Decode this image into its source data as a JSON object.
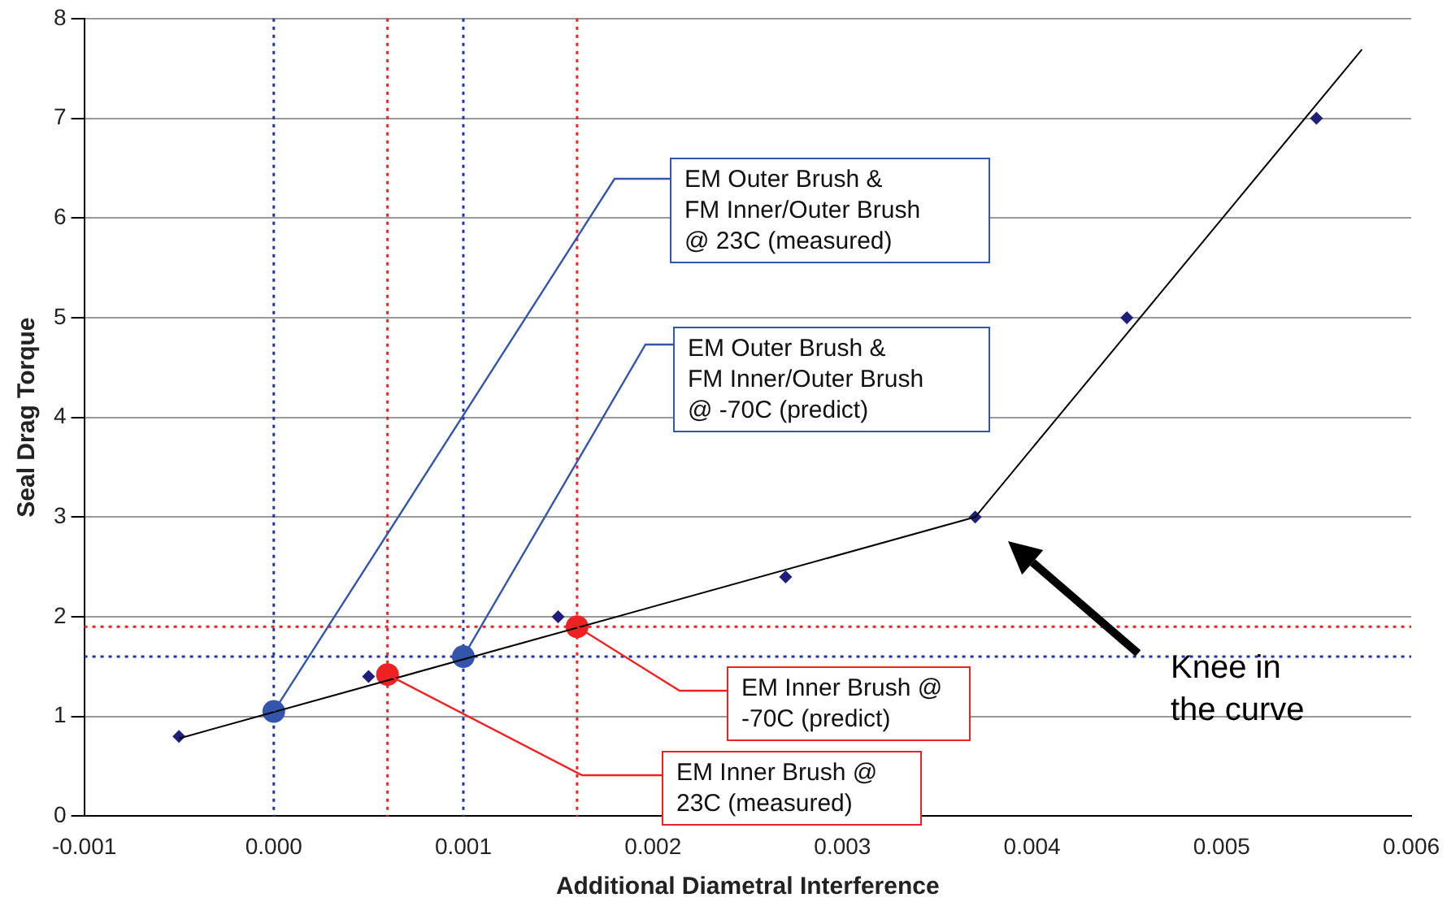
{
  "chart_data": {
    "type": "scatter",
    "xlabel": "Additional Diametral Interference",
    "ylabel": "Seal Drag Torque",
    "xlim": [
      -0.001,
      0.006
    ],
    "xticks": [
      -0.001,
      {
        "value": 0,
        "label": "0.000"
      },
      0.001,
      0.002,
      0.003,
      0.004,
      0.005,
      0.006
    ],
    "ylim": [
      0,
      8
    ],
    "yticks": [
      0,
      1,
      2,
      3,
      4,
      5,
      6,
      7,
      8
    ],
    "grid": "y",
    "legend": false,
    "series": [
      {
        "type": "line",
        "color": "#000000",
        "marker": "none",
        "x": [
          -0.0005,
          0.0037,
          0.00574
        ],
        "values": [
          0.78,
          3.0,
          7.69
        ]
      },
      {
        "type": "scatter",
        "color": "#1f1f7a",
        "marker": "diamond",
        "x": [
          -0.0005,
          0.0005,
          0.0015,
          0.0027,
          0.0037,
          0.0045,
          0.0055
        ],
        "values": [
          0.8,
          1.4,
          2.0,
          2.4,
          3.0,
          5.0,
          7.0
        ]
      },
      {
        "type": "scatter",
        "color": "#3355aa",
        "marker": "circle",
        "x": [
          0,
          0.001
        ],
        "values": [
          1.05,
          1.6
        ]
      },
      {
        "type": "scatter",
        "color": "#ee2222",
        "marker": "circle",
        "x": [
          0.0006,
          0.0016
        ],
        "values": [
          1.42,
          1.9
        ]
      }
    ],
    "ref_lines": [
      {
        "axis": "x",
        "value": 0,
        "color": "#2233aa",
        "line_style": "dotted"
      },
      {
        "axis": "x",
        "value": 0.001,
        "color": "#2233aa",
        "line_style": "dotted"
      },
      {
        "axis": "x",
        "value": 0.0006,
        "color": "#ee2222",
        "line_style": "dotted"
      },
      {
        "axis": "x",
        "value": 0.0016,
        "color": "#ee2222",
        "line_style": "dotted"
      },
      {
        "axis": "y",
        "value": 1.9,
        "color": "#ee2222",
        "line_style": "dotted"
      },
      {
        "axis": "y",
        "value": 1.6,
        "color": "#2233aa",
        "line_style": "dotted"
      }
    ],
    "annotations": [
      {
        "text": "EM Outer Brush &\nFM Inner/Outer Brush\n@ 23C (measured)",
        "x": 0,
        "y": 1.05
      },
      {
        "text": "EM Outer Brush &\nFM Inner/Outer Brush\n@ -70C (predict)",
        "x": 0.001,
        "y": 1.6
      },
      {
        "text": "EM Inner Brush @\n-70C (predict)",
        "x": 0.0016,
        "y": 1.9
      },
      {
        "text": "EM Inner Brush @\n23C (measured)",
        "x": 0.0006,
        "y": 1.42
      },
      "Knee in\nthe curve"
    ]
  }
}
